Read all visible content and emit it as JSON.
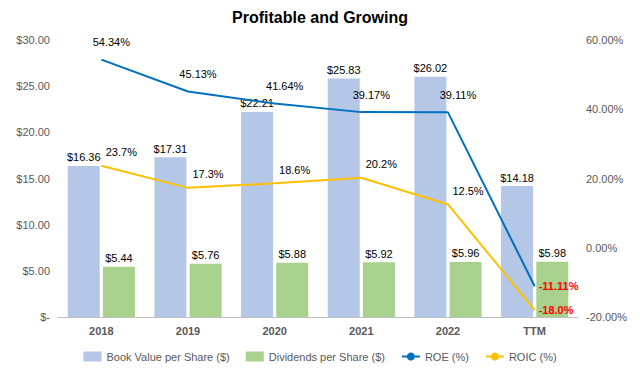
{
  "chart_data": {
    "type": "bar",
    "title": "Profitable and Growing",
    "categories": [
      "2018",
      "2019",
      "2020",
      "2021",
      "2022",
      "TTM"
    ],
    "series": [
      {
        "name": "Book Value per Share ($)",
        "type": "bar",
        "color": "#b4c7e7",
        "values": [
          16.36,
          17.31,
          22.21,
          25.83,
          26.02,
          14.18
        ],
        "value_labels": [
          "$16.36",
          "$17.31",
          "$22.21",
          "$25.83",
          "$26.02",
          "$14.18"
        ]
      },
      {
        "name": "Dividends per Share ($)",
        "type": "bar",
        "color": "#a9d18e",
        "values": [
          5.44,
          5.76,
          5.88,
          5.92,
          5.96,
          5.98
        ],
        "value_labels": [
          "$5.44",
          "$5.76",
          "$5.88",
          "$5.92",
          "$5.96",
          "$5.98"
        ]
      },
      {
        "name": "ROE (%)",
        "type": "line",
        "color": "#0070c0",
        "axis": "y2",
        "marker": "none",
        "values": [
          54.34,
          45.13,
          41.64,
          39.17,
          39.11,
          -11.11
        ],
        "value_labels": [
          "54.34%",
          "45.13%",
          "41.64%",
          "39.17%",
          "39.11%",
          "-11.11%"
        ]
      },
      {
        "name": "ROIC (%)",
        "type": "line",
        "color": "#ffc000",
        "axis": "y2",
        "marker": "none",
        "values": [
          23.7,
          17.3,
          18.6,
          20.2,
          12.5,
          -18.0
        ],
        "value_labels": [
          "23.7%",
          "17.3%",
          "18.6%",
          "20.2%",
          "12.5%",
          "-18.0%"
        ]
      }
    ],
    "ylim": [
      0,
      30
    ],
    "yticks": [
      {
        "value": 0,
        "label": "$-"
      },
      {
        "value": 5,
        "label": "$5.00"
      },
      {
        "value": 10,
        "label": "$10.00"
      },
      {
        "value": 15,
        "label": "$15.00"
      },
      {
        "value": 20,
        "label": "$20.00"
      },
      {
        "value": 25,
        "label": "$25.00"
      },
      {
        "value": 30,
        "label": "$30.00"
      }
    ],
    "y2lim": [
      -20,
      60
    ],
    "y2ticks": [
      {
        "value": -20,
        "label": "-20.00%"
      },
      {
        "value": 0,
        "label": "0.00%"
      },
      {
        "value": 20,
        "label": "20.00%"
      },
      {
        "value": 40,
        "label": "40.00%"
      },
      {
        "value": 60,
        "label": "60.00%"
      }
    ],
    "grid": false,
    "legend": "bottom",
    "data_labels": true
  }
}
